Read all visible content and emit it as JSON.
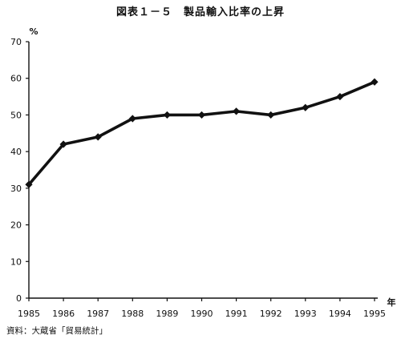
{
  "chart_data": {
    "type": "line",
    "title": "図表１－５　製品輸入比率の上昇",
    "ylabel": "%",
    "xlabel": "年",
    "source": "資料：大蔵省「貿易統計」",
    "categories": [
      "1985",
      "1986",
      "1987",
      "1988",
      "1989",
      "1990",
      "1991",
      "1992",
      "1993",
      "1994",
      "1995"
    ],
    "series": [
      {
        "values": [
          31,
          42,
          44,
          49,
          50,
          50,
          51,
          50,
          52,
          55,
          59
        ]
      }
    ],
    "yticks": [
      0,
      10,
      20,
      30,
      40,
      50,
      60,
      70
    ],
    "ylim": [
      0,
      70
    ],
    "grid": false,
    "colors": {
      "line": "#111111",
      "axis": "#111111"
    }
  }
}
